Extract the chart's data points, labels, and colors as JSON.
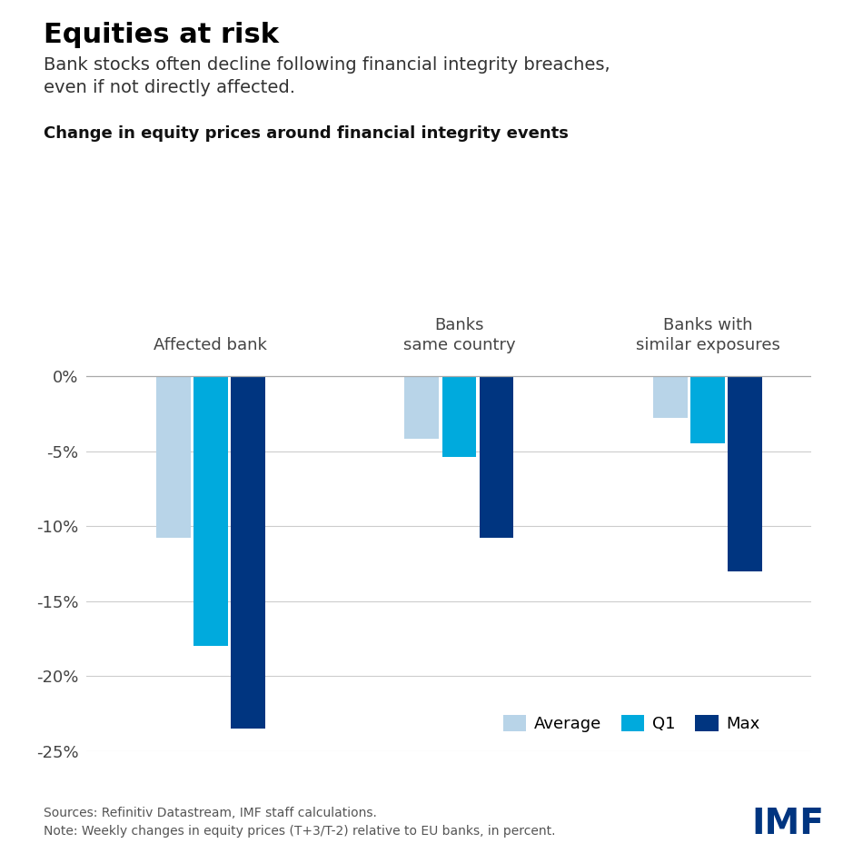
{
  "title": "Equities at risk",
  "subtitle": "Bank stocks often decline following financial integrity breaches,\neven if not directly affected.",
  "chart_label": "Change in equity prices around financial integrity events",
  "groups": [
    "Affected bank",
    "Banks\nsame country",
    "Banks with\nsimilar exposures"
  ],
  "series": [
    "Average",
    "Q1",
    "Max"
  ],
  "values": [
    [
      -10.8,
      -18.0,
      -23.5
    ],
    [
      -4.2,
      -5.4,
      -10.8
    ],
    [
      -2.8,
      -4.5,
      -13.0
    ]
  ],
  "colors": [
    "#b8d4e8",
    "#00aadd",
    "#003580"
  ],
  "ylim": [
    -25,
    1.5
  ],
  "yticks": [
    0,
    -5,
    -10,
    -15,
    -20,
    -25
  ],
  "yticklabels": [
    "0%",
    "-5%",
    "-10%",
    "-15%",
    "-20%",
    "-25%"
  ],
  "background_color": "#ffffff",
  "source_text": "Sources: Refinitiv Datastream, IMF staff calculations.\nNote: Weekly changes in equity prices (T+3/T-2) relative to EU banks, in percent.",
  "imf_color": "#003580",
  "bar_width": 0.18,
  "group_centers": [
    0.3,
    1.5,
    2.7
  ]
}
